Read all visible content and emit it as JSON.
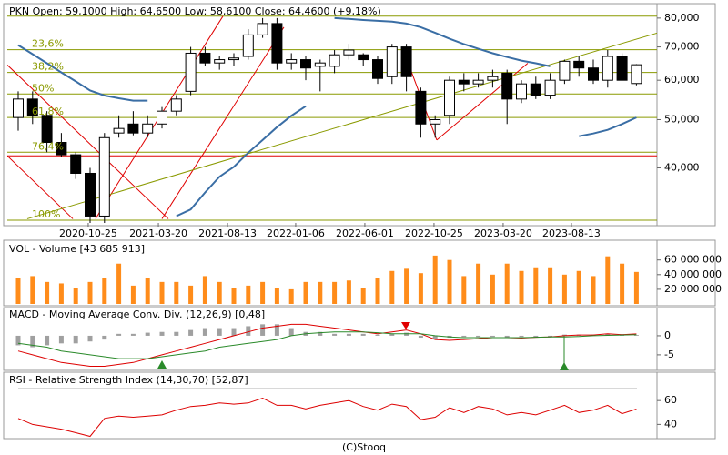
{
  "chart_data": [
    {
      "type": "candlestick",
      "title": "PKN Open: 59,1000  High: 64,6500  Low: 58,6100  Close: 64,4600 (+9,18%)",
      "log_scale": true,
      "ylim": [
        31000,
        84100
      ],
      "yticks": [
        {
          "value": 40000,
          "label": "40,000"
        },
        {
          "value": 50000,
          "label": "50,000"
        },
        {
          "value": 60000,
          "label": "60,000"
        },
        {
          "value": 70000,
          "label": "70,000"
        },
        {
          "value": 80000,
          "label": "80,000"
        }
      ],
      "xticks": [
        {
          "value": 4.87,
          "label": "2020-10-25"
        },
        {
          "value": 9.75,
          "label": "2021-03-20"
        },
        {
          "value": 14.56,
          "label": "2021-08-13"
        },
        {
          "value": 19.3,
          "label": "2022-01-06"
        },
        {
          "value": 24.11,
          "label": "2022-06-01"
        },
        {
          "value": 28.92,
          "label": "2022-10-25"
        },
        {
          "value": 33.73,
          "label": "2023-03-20"
        },
        {
          "value": 38.48,
          "label": "2023-08-13"
        }
      ],
      "up_color": "#ffffff",
      "down_color": "#000000",
      "open": [
        50500,
        55000,
        51000,
        45000,
        42500,
        39000,
        32000,
        47000,
        49000,
        47000,
        49000,
        52000,
        57000,
        68000,
        65000,
        66000,
        67000,
        74000,
        78000,
        65000,
        66000,
        64000,
        64000,
        67500,
        67500,
        66000,
        61000,
        70000,
        57000,
        49000,
        51000,
        60000,
        59000,
        60000,
        62000,
        55000,
        59000,
        56000,
        60000,
        65500,
        63500,
        60000,
        67000,
        59100
      ],
      "high": [
        57000,
        57000,
        52000,
        47000,
        43000,
        40000,
        47000,
        51000,
        52000,
        51000,
        53000,
        56000,
        70000,
        70000,
        67000,
        68000,
        76000,
        80000,
        80000,
        68000,
        67000,
        66000,
        69000,
        71000,
        68000,
        67000,
        71000,
        71000,
        58000,
        51000,
        61000,
        62000,
        62000,
        63000,
        63000,
        60000,
        61000,
        62000,
        66000,
        67000,
        66000,
        69000,
        68000,
        64650
      ],
      "low": [
        47500,
        49000,
        43000,
        42000,
        38000,
        31000,
        31000,
        46000,
        46500,
        46000,
        48000,
        51000,
        56000,
        64000,
        63000,
        64000,
        66000,
        73000,
        63000,
        63000,
        60000,
        57000,
        62000,
        66000,
        64000,
        59000,
        59000,
        57000,
        46000,
        46000,
        49000,
        57000,
        58000,
        58000,
        49000,
        54000,
        55000,
        55000,
        59000,
        61000,
        59000,
        58000,
        60000,
        58610
      ],
      "close": [
        55000,
        51000,
        45000,
        42500,
        39000,
        32000,
        46000,
        48000,
        47000,
        49000,
        52000,
        55000,
        68000,
        65000,
        66000,
        66500,
        74000,
        78000,
        65000,
        66000,
        63500,
        65000,
        67500,
        69000,
        66000,
        60500,
        70000,
        61000,
        49000,
        50000,
        60000,
        59000,
        60000,
        61000,
        55000,
        59000,
        56000,
        60000,
        65500,
        63500,
        60000,
        67000,
        60000,
        64460
      ],
      "moving_average": {
        "color": "#3a6ea5",
        "values": [
          70600,
          67700,
          64900,
          62200,
          59700,
          57200,
          55900,
          55200,
          54600,
          54600,
          null,
          32000,
          33000,
          35700,
          38400,
          40200,
          42900,
          45500,
          48300,
          50900,
          53200,
          null,
          80000,
          79700,
          79300,
          79000,
          78700,
          78000,
          76700,
          74700,
          72700,
          70900,
          69400,
          68000,
          66800,
          65700,
          64900,
          64000,
          null,
          46300,
          46900,
          47700,
          49000,
          50500
        ]
      },
      "fibonacci": {
        "color": "#8a9a00",
        "levels": [
          80700,
          69100,
          62200,
          56300,
          50500,
          43000,
          31400
        ],
        "labels": [
          null,
          "23,6%",
          "38,2%",
          "50%",
          "61,8%",
          "76,4%",
          "100%"
        ]
      },
      "reference_line": {
        "value": 42300,
        "color": "#e00000"
      },
      "trendlines": [
        {
          "color": "#e00000",
          "x": [
            -0.76,
            10.44
          ],
          "y": [
            64400,
            31600
          ]
        },
        {
          "color": "#e00000",
          "x": [
            -0.76,
            3.8
          ],
          "y": [
            42300,
            31600
          ]
        },
        {
          "color": "#e00000",
          "x": [
            5.38,
            14.24
          ],
          "y": [
            31600,
            80700
          ]
        },
        {
          "color": "#e00000",
          "x": [
            10.0,
            18.48
          ],
          "y": [
            31600,
            76700
          ]
        },
        {
          "color": "#e00000",
          "x": [
            26.71,
            29.11
          ],
          "y": [
            70000,
            45500
          ]
        },
        {
          "color": "#e00000",
          "x": [
            29.11,
            35.44
          ],
          "y": [
            45500,
            64900
          ]
        },
        {
          "color": "#8a9a00",
          "x": [
            0.63,
            47.97
          ],
          "y": [
            31600,
            80000
          ]
        }
      ]
    },
    {
      "type": "bar",
      "title": "VOL - Volume [43 685 913]",
      "color": "#ff8c1a",
      "ylim": [
        0,
        82000000
      ],
      "yticks": [
        {
          "value": 20000000,
          "label": "20 000 000"
        },
        {
          "value": 40000000,
          "label": "40 000 000"
        },
        {
          "value": 60000000,
          "label": "60 000 000"
        }
      ],
      "values": [
        35000000,
        38000000,
        30000000,
        28000000,
        22000000,
        30000000,
        35000000,
        55000000,
        25000000,
        35000000,
        30000000,
        30000000,
        25000000,
        38000000,
        30000000,
        22000000,
        25000000,
        30000000,
        22000000,
        20000000,
        30000000,
        30000000,
        30000000,
        32000000,
        22000000,
        35000000,
        45000000,
        48000000,
        42000000,
        66000000,
        60000000,
        38000000,
        55000000,
        40000000,
        55000000,
        45000000,
        50000000,
        50000000,
        40000000,
        45000000,
        38000000,
        65000000,
        55000000,
        43685913
      ]
    },
    {
      "type": "macd",
      "title": "MACD - Moving Average Conv. Div. (12,26,9) [0,48]",
      "ylim": [
        -8.6,
        6.9
      ],
      "yticks": [
        -5,
        0
      ],
      "histogram": {
        "color": "#a0a0a0",
        "values": [
          -2.5,
          -3,
          -2.5,
          -2,
          -2,
          -1.5,
          -1,
          0.5,
          0.5,
          0.8,
          1,
          1,
          1.5,
          2,
          2,
          2,
          2.5,
          3,
          3,
          2,
          1,
          1,
          0.5,
          0.5,
          0.5,
          0.3,
          0.5,
          0.8,
          -0.5,
          -1,
          -0.5,
          -0.3,
          -0.3,
          -0.3,
          -0.5,
          -0.3,
          -0.3,
          -0.3,
          0.3,
          0.3,
          0.3,
          0.5,
          0.4,
          0.2
        ]
      },
      "series": [
        {
          "color": "#dd0000",
          "values": [
            -4,
            -5,
            -6,
            -7,
            -7.5,
            -8,
            -8,
            -7.5,
            -7,
            -6,
            -5,
            -4,
            -3,
            -2,
            -1,
            0,
            1,
            2,
            2.5,
            3,
            3,
            2.5,
            2,
            1.5,
            1,
            0.5,
            1,
            1.5,
            0.5,
            -1,
            -1.2,
            -1,
            -0.8,
            -0.5,
            -0.5,
            -0.6,
            -0.4,
            -0.3,
            0,
            0.2,
            0.2,
            0.5,
            0.3,
            0.48
          ]
        },
        {
          "color": "#2a8a2a",
          "values": [
            -2,
            -2.5,
            -3,
            -4,
            -4.5,
            -5,
            -5.5,
            -6,
            -6,
            -6,
            -5.5,
            -5,
            -4.5,
            -4,
            -3,
            -2.5,
            -2,
            -1.5,
            -1,
            0,
            0.5,
            0.8,
            1,
            1,
            1,
            0.8,
            0.5,
            0.5,
            0.5,
            0,
            -0.3,
            -0.5,
            -0.5,
            -0.5,
            -0.5,
            -0.5,
            -0.4,
            -0.3,
            -0.3,
            -0.2,
            0,
            0.1,
            0.2,
            0.3
          ]
        }
      ]
    },
    {
      "type": "line",
      "title": "RSI - Relative Strength Index (14,30,70) [52,87]",
      "ylim": [
        29.6,
        81.5
      ],
      "yticks": [
        40,
        60
      ],
      "levels": [
        70
      ],
      "series": [
        {
          "color": "#dd0000",
          "values": [
            45,
            40,
            38,
            36,
            33,
            30,
            45,
            47,
            46,
            47,
            48,
            52,
            55,
            56,
            58,
            57,
            58,
            62,
            56,
            56,
            53,
            56,
            58,
            60,
            55,
            52,
            57,
            55,
            44,
            46,
            54,
            50,
            55,
            53,
            48,
            50,
            48,
            52,
            56,
            50,
            52,
            56,
            49,
            52.87
          ]
        }
      ]
    }
  ]
}
